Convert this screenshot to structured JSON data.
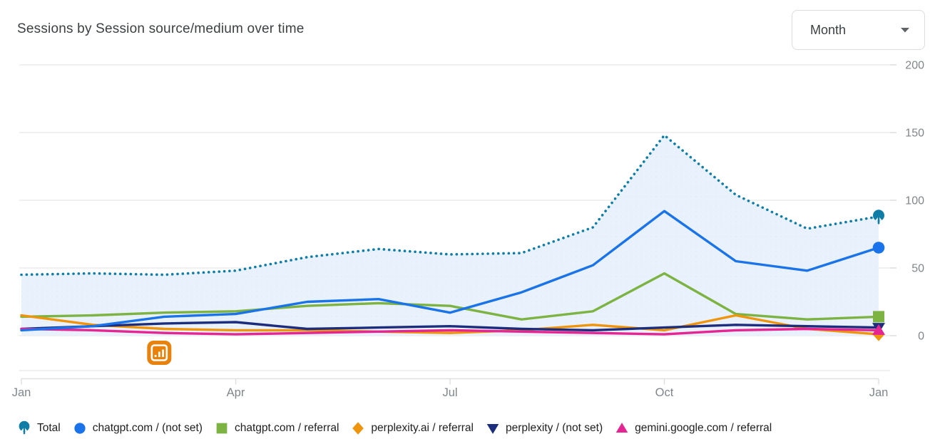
{
  "header": {
    "title": "Sessions by Session source/medium over time"
  },
  "controls": {
    "granularity_label": "Month",
    "dropdown_icon": "caret-down-icon"
  },
  "chart_data": {
    "type": "line",
    "title": "Sessions by Session source/medium over time",
    "x": [
      "Jan",
      "Feb",
      "Mar",
      "Apr",
      "May",
      "Jun",
      "Jul",
      "Aug",
      "Sep",
      "Oct",
      "Nov",
      "Dec",
      "Jan"
    ],
    "x_axis": {
      "tick_indices": [
        0,
        3,
        6,
        9,
        12
      ],
      "tick_labels": [
        "Jan",
        "Apr",
        "Jul",
        "Oct",
        "Jan"
      ]
    },
    "y_axis": {
      "position": "right",
      "min": 0,
      "max": 200,
      "ticks": [
        0,
        50,
        100,
        150,
        200
      ],
      "tick_labels": [
        "0",
        "50",
        "100",
        "150",
        "200"
      ]
    },
    "grid": true,
    "legend_position": "bottom",
    "series": [
      {
        "id": "total",
        "name": "Total",
        "color": "#0f7da5",
        "line_style": "dotted",
        "marker": "balloon",
        "area_fill": "#e9f2fc",
        "values": [
          45,
          46,
          45,
          48,
          58,
          64,
          60,
          61,
          80,
          148,
          104,
          79,
          88
        ]
      },
      {
        "id": "chatgpt-notset",
        "name": "chatgpt.com / (not set)",
        "color": "#1a73e8",
        "line_style": "solid",
        "marker": "circle",
        "values": [
          4,
          7,
          14,
          16,
          25,
          27,
          17,
          32,
          52,
          92,
          55,
          48,
          65
        ]
      },
      {
        "id": "chatgpt-referral",
        "name": "chatgpt.com / referral",
        "color": "#7cb342",
        "line_style": "solid",
        "marker": "square",
        "values": [
          14,
          15,
          17,
          18,
          22,
          24,
          22,
          12,
          18,
          46,
          16,
          12,
          14
        ]
      },
      {
        "id": "perplexityai-referral",
        "name": "perplexity.ai / referral",
        "color": "#ef940d",
        "line_style": "solid",
        "marker": "diamond",
        "values": [
          15,
          8,
          5,
          4,
          4,
          3,
          2,
          4,
          8,
          4,
          15,
          5,
          1
        ]
      },
      {
        "id": "perplexity-notset",
        "name": "perplexity / (not set)",
        "color": "#1c2d7e",
        "line_style": "solid",
        "marker": "triangle-down",
        "values": [
          5,
          7,
          9,
          10,
          5,
          6,
          7,
          5,
          4,
          6,
          8,
          7,
          6
        ]
      },
      {
        "id": "gemini-referral",
        "name": "gemini.google.com / referral",
        "color": "#e52592",
        "line_style": "solid",
        "marker": "triangle-up",
        "values": [
          5,
          4,
          2,
          1,
          2,
          3,
          4,
          3,
          2,
          1,
          4,
          5,
          4
        ]
      }
    ],
    "annotation": {
      "icon": "looker-studio-icon",
      "color": "#e8820c",
      "x_month_index": 1.93
    }
  }
}
